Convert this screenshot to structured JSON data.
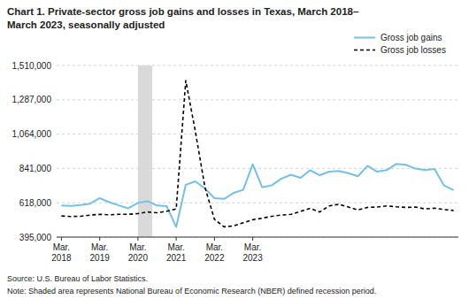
{
  "chart_data": {
    "type": "line",
    "title": "Chart 1. Private-sector gross job gains and losses in Texas, March 2018–",
    "subtitle": "March 2023, seasonally adjusted",
    "annotations": [
      "Source: U.S. Bureau of Labor Statistics.",
      "Note: Shaded area represents National Bureau of Economic Research (NBER)  defined recession period."
    ],
    "categories": [
      "Mar.\n2018",
      null,
      null,
      null,
      "Mar.\n2019",
      null,
      null,
      null,
      "Mar.\n2020",
      null,
      null,
      null,
      "Mar.\n2021",
      null,
      null,
      null,
      "Mar.\n2022",
      null,
      null,
      null,
      "Mar.\n2023",
      null,
      null,
      null,
      null,
      null,
      null,
      null,
      null,
      null,
      null,
      null,
      null,
      null,
      null,
      null,
      null,
      null,
      null,
      null,
      null,
      null
    ],
    "shaded_span": [
      8,
      9.5
    ],
    "series": [
      {
        "name": "Gross job gains",
        "color": "#74c0e8",
        "line_style": "solid",
        "values": [
          600000,
          598000,
          603000,
          612000,
          648000,
          622000,
          601000,
          582000,
          617000,
          628000,
          600000,
          596000,
          461000,
          735000,
          757000,
          711000,
          648000,
          643000,
          682000,
          702000,
          868000,
          718000,
          732000,
          775000,
          800000,
          780000,
          830000,
          797000,
          820000,
          825000,
          810000,
          790000,
          858000,
          820000,
          830000,
          870000,
          865000,
          840000,
          830000,
          838000,
          730000,
          700000
        ]
      },
      {
        "name": "Gross job losses",
        "color": "#000000",
        "line_style": "dashed",
        "values": [
          532000,
          529000,
          530000,
          538000,
          543000,
          540000,
          543000,
          543000,
          548000,
          558000,
          553000,
          563000,
          578000,
          1412000,
          1082000,
          720000,
          510000,
          462000,
          468000,
          488000,
          508000,
          518000,
          530000,
          538000,
          543000,
          562000,
          582000,
          558000,
          598000,
          608000,
          590000,
          572000,
          588000,
          590000,
          598000,
          592000,
          588000,
          590000,
          578000,
          583000,
          574000,
          568000
        ]
      }
    ],
    "ylim": [
      395000,
      1510000
    ],
    "yticks": [
      {
        "value": 395000,
        "label": "395,000"
      },
      {
        "value": 618000,
        "label": "618,000"
      },
      {
        "value": 841000,
        "label": "841,000"
      },
      {
        "value": 1064000,
        "label": "1,064,000"
      },
      {
        "value": 1287000,
        "label": "1,287,000"
      },
      {
        "value": 1510000,
        "label": "1,510,000"
      }
    ],
    "grid": true,
    "legend": "upper right"
  }
}
